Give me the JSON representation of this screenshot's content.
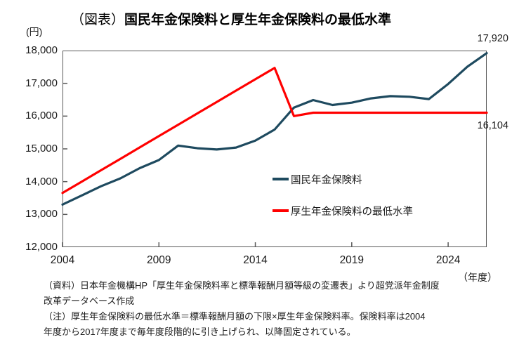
{
  "title": {
    "prefix": "（図表）",
    "main": "国民年金保険料と厚生年金保険料の最低水準"
  },
  "y_axis": {
    "unit": "(円)",
    "tick_labels": [
      "18,000",
      "17,000",
      "16,000",
      "15,000",
      "14,000",
      "13,000",
      "12,000"
    ]
  },
  "x_axis": {
    "unit": "（年度）",
    "tick_labels": [
      "2004",
      "2009",
      "2014",
      "2019",
      "2024"
    ]
  },
  "annotations": {
    "blue_end": "17,920",
    "red_end": "16,104"
  },
  "legend": [
    {
      "label": "国民年金保険料",
      "color": "#1E4A5F"
    },
    {
      "label": "厚生年金保険料の最低水準",
      "color": "#FF0000"
    }
  ],
  "notes": [
    "（資料）日本年金機構HP「厚生年金保険料率と標準報酬月額等級の変遷表」より超党派年金制度",
    "改革データベース作成",
    "（注）厚生年金保険料の最低水準＝標準報酬月額の下限×厚生年金保険料率。保険料率は2004",
    "年度から2017年度まで毎年度段階的に引き上げられ、以降固定されている。"
  ],
  "chart_data": {
    "type": "line",
    "title": "（図表）国民年金保険料と厚生年金保険料の最低水準",
    "xlabel": "（年度）",
    "ylabel": "(円)",
    "xlim": [
      2004,
      2026
    ],
    "ylim": [
      12000,
      18000
    ],
    "x_tick_values": [
      2004,
      2009,
      2014,
      2019,
      2024
    ],
    "y_tick_values": [
      12000,
      13000,
      14000,
      15000,
      16000,
      17000,
      18000
    ],
    "grid": false,
    "legend_position": "inside-right-middle",
    "x": [
      2004,
      2005,
      2006,
      2007,
      2008,
      2009,
      2010,
      2011,
      2012,
      2013,
      2014,
      2015,
      2016,
      2017,
      2018,
      2019,
      2020,
      2021,
      2022,
      2023,
      2024,
      2025,
      2026
    ],
    "series": [
      {
        "name": "国民年金保険料",
        "color": "#1E4A5F",
        "values": [
          13300,
          13580,
          13860,
          14100,
          14410,
          14660,
          15100,
          15020,
          14980,
          15040,
          15250,
          15590,
          16260,
          16490,
          16340,
          16410,
          16540,
          16610,
          16590,
          16520,
          16980,
          17510,
          17920
        ]
      },
      {
        "name": "厚生年金保険料の最低水準",
        "color": "#FF0000",
        "values": [
          13655,
          14002,
          14349,
          14696,
          15043,
          15390,
          15737,
          16084,
          16431,
          16778,
          17124,
          17471,
          16000,
          16104,
          16104,
          16104,
          16104,
          16104,
          16104,
          16104,
          16104,
          16104,
          16104
        ]
      }
    ],
    "end_labels": {
      "国民年金保険料": "17,920",
      "厚生年金保険料の最低水準": "16,104"
    }
  }
}
